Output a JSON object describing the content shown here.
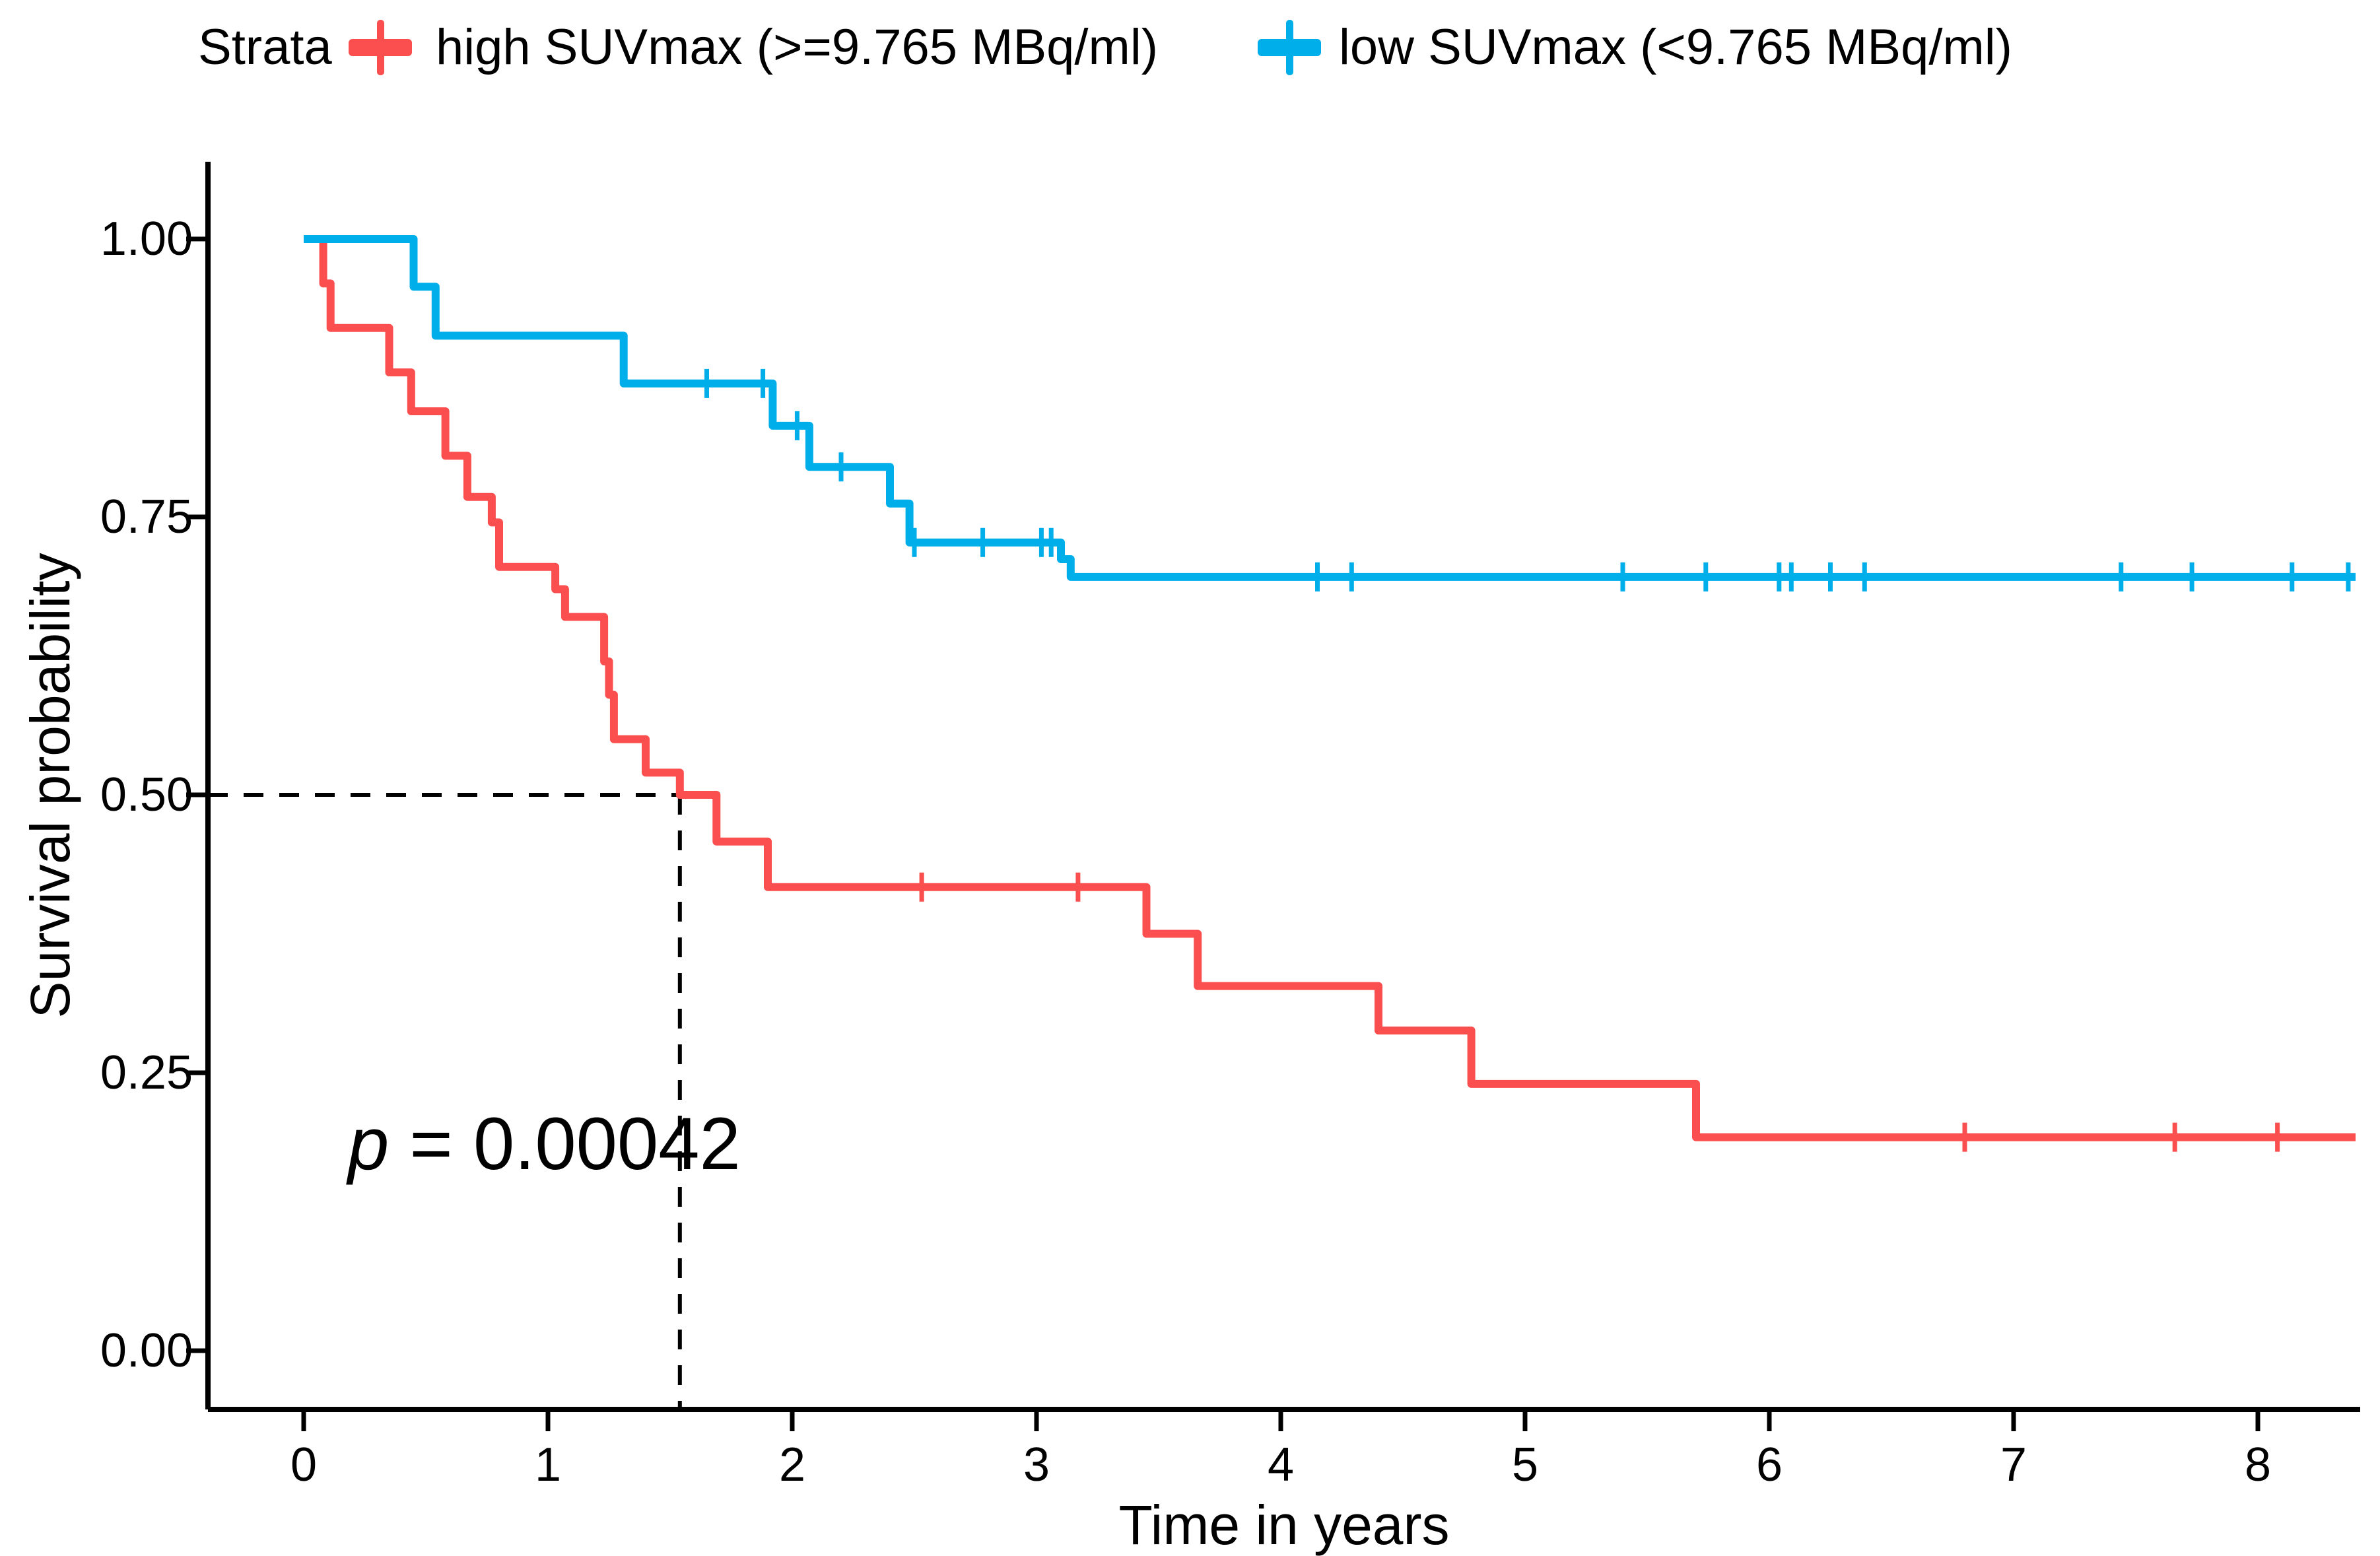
{
  "figure": {
    "background": "#ffffff",
    "axis_color": "#000000"
  },
  "legend": {
    "title": "Strata",
    "items": [
      {
        "id": "high",
        "label": "high SUVmax (>=9.765 MBq/ml)",
        "color": "#FB4E4E"
      },
      {
        "id": "low",
        "label": "low SUVmax (<9.765 MBq/ml)",
        "color": "#00AEE9"
      }
    ]
  },
  "chart_data": {
    "type": "line",
    "subtype": "kaplan-meier-step-curve",
    "title": "",
    "xlabel": "Time in years",
    "ylabel": "Survival probability",
    "xlim": [
      -0.4,
      8.45
    ],
    "ylim": [
      0.0,
      1.0
    ],
    "grid": "off",
    "legend_position": "top",
    "x_ticks": [
      {
        "value": 0,
        "label": "0"
      },
      {
        "value": 1,
        "label": "1"
      },
      {
        "value": 2,
        "label": "2"
      },
      {
        "value": 3,
        "label": "3"
      },
      {
        "value": 4,
        "label": "4"
      },
      {
        "value": 5,
        "label": "5"
      },
      {
        "value": 6,
        "label": "6"
      },
      {
        "value": 7,
        "label": "7"
      },
      {
        "value": 8,
        "label": "8"
      }
    ],
    "y_ticks": [
      {
        "value": 1.0,
        "label": "1.00"
      },
      {
        "value": 0.75,
        "label": "0.75"
      },
      {
        "value": 0.5,
        "label": "0.50"
      },
      {
        "value": 0.25,
        "label": "0.25"
      },
      {
        "value": 0.0,
        "label": "0.00"
      }
    ],
    "pvalue": {
      "symbol": "p",
      "text": " = 0.00042"
    },
    "median_annotation": {
      "time": 1.54,
      "survival": 0.5,
      "style": "dashed"
    },
    "series": [
      {
        "name": "high SUVmax (>=9.765 MBq/ml)",
        "color": "#FB4E4E",
        "steps": [
          [
            0.0,
            1.0
          ],
          [
            0.08,
            0.96
          ],
          [
            0.11,
            0.92
          ],
          [
            0.35,
            0.88
          ],
          [
            0.44,
            0.845
          ],
          [
            0.58,
            0.805
          ],
          [
            0.67,
            0.768
          ],
          [
            0.77,
            0.745
          ],
          [
            0.8,
            0.705
          ],
          [
            1.03,
            0.685
          ],
          [
            1.07,
            0.66
          ],
          [
            1.23,
            0.62
          ],
          [
            1.25,
            0.59
          ],
          [
            1.27,
            0.55
          ],
          [
            1.4,
            0.52
          ],
          [
            1.54,
            0.5
          ],
          [
            1.69,
            0.458
          ],
          [
            1.9,
            0.417
          ],
          [
            3.45,
            0.375
          ],
          [
            3.66,
            0.328
          ],
          [
            4.4,
            0.288
          ],
          [
            4.78,
            0.24
          ],
          [
            5.7,
            0.192
          ]
        ],
        "end_time": 8.4,
        "censor_times": [
          2.53,
          3.17,
          6.8,
          7.66,
          8.08
        ]
      },
      {
        "name": "low SUVmax (<9.765 MBq/ml)",
        "color": "#00AEE9",
        "steps": [
          [
            0.0,
            1.0
          ],
          [
            0.45,
            0.957
          ],
          [
            0.54,
            0.913
          ],
          [
            1.31,
            0.87
          ],
          [
            1.92,
            0.832
          ],
          [
            2.07,
            0.795
          ],
          [
            2.4,
            0.762
          ],
          [
            2.48,
            0.727
          ],
          [
            3.1,
            0.712
          ],
          [
            3.14,
            0.696
          ]
        ],
        "end_time": 8.4,
        "censor_times": [
          1.65,
          1.88,
          2.02,
          2.2,
          2.5,
          2.78,
          3.02,
          3.06,
          4.15,
          4.29,
          5.4,
          5.74,
          6.04,
          6.09,
          6.25,
          6.39,
          7.44,
          7.73,
          8.14,
          8.37
        ]
      }
    ]
  }
}
